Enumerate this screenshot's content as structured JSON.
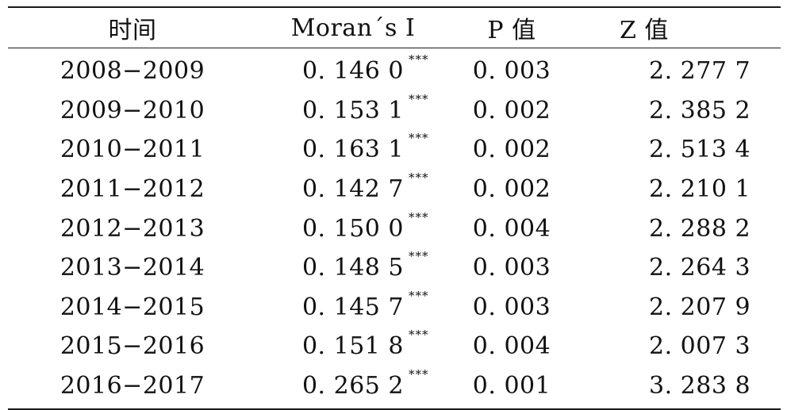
{
  "table": {
    "headers": {
      "time": "时间",
      "moran": "Moran´s I",
      "p": "P 值",
      "z": "Z 值"
    },
    "rows": [
      {
        "time": "2008−2009",
        "moran": "0. 146 0",
        "sig": "***",
        "p": "0. 003",
        "z": "2. 277 7"
      },
      {
        "time": "2009−2010",
        "moran": "0. 153 1",
        "sig": "***",
        "p": "0. 002",
        "z": "2. 385 2"
      },
      {
        "time": "2010−2011",
        "moran": "0. 163 1",
        "sig": "***",
        "p": "0. 002",
        "z": "2. 513 4"
      },
      {
        "time": "2011−2012",
        "moran": "0. 142 7",
        "sig": "***",
        "p": "0. 002",
        "z": "2. 210 1"
      },
      {
        "time": "2012−2013",
        "moran": "0. 150 0",
        "sig": "***",
        "p": "0. 004",
        "z": "2. 288 2"
      },
      {
        "time": "2013−2014",
        "moran": "0. 148 5",
        "sig": "***",
        "p": "0. 003",
        "z": "2. 264 3"
      },
      {
        "time": "2014−2015",
        "moran": "0. 145 7",
        "sig": "***",
        "p": "0. 003",
        "z": "2. 207 9"
      },
      {
        "time": "2015−2016",
        "moran": "0. 151 8",
        "sig": "***",
        "p": "0. 004",
        "z": "2. 007 3"
      },
      {
        "time": "2016−2017",
        "moran": "0. 265 2",
        "sig": "***",
        "p": "0. 001",
        "z": "3. 283 8"
      }
    ]
  }
}
